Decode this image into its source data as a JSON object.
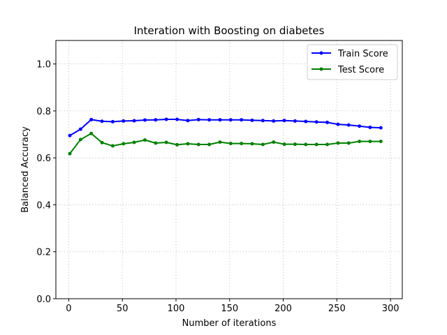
{
  "chart_data": {
    "type": "line",
    "title": "Interation with Boosting on diabetes",
    "xlabel": "Number of iterations",
    "ylabel": "Balanced Accuracy",
    "xlim": [
      -12,
      311
    ],
    "ylim": [
      0.0,
      1.1
    ],
    "xticks": [
      0,
      50,
      100,
      150,
      200,
      250,
      300
    ],
    "yticks": [
      0.0,
      0.2,
      0.4,
      0.6,
      0.8,
      1.0
    ],
    "xtick_labels": [
      "0",
      "50",
      "100",
      "150",
      "200",
      "250",
      "300"
    ],
    "ytick_labels": [
      "0.0",
      "0.2",
      "0.4",
      "0.6",
      "0.8",
      "1.0"
    ],
    "grid": true,
    "legend_position": "top-right",
    "x": [
      1,
      11,
      21,
      31,
      41,
      51,
      61,
      71,
      81,
      91,
      101,
      111,
      121,
      131,
      141,
      151,
      161,
      171,
      181,
      191,
      201,
      211,
      221,
      231,
      241,
      251,
      261,
      271,
      281,
      291
    ],
    "series": [
      {
        "name": "Train Score",
        "color": "#0000ff",
        "values": [
          0.695,
          0.722,
          0.763,
          0.756,
          0.754,
          0.757,
          0.758,
          0.761,
          0.762,
          0.764,
          0.764,
          0.759,
          0.763,
          0.762,
          0.762,
          0.762,
          0.762,
          0.76,
          0.759,
          0.757,
          0.759,
          0.757,
          0.755,
          0.753,
          0.751,
          0.743,
          0.74,
          0.735,
          0.73,
          0.728
        ]
      },
      {
        "name": "Test Score",
        "color": "#008000",
        "values": [
          0.618,
          0.678,
          0.704,
          0.665,
          0.651,
          0.66,
          0.666,
          0.676,
          0.663,
          0.666,
          0.656,
          0.66,
          0.657,
          0.657,
          0.667,
          0.661,
          0.661,
          0.66,
          0.657,
          0.667,
          0.658,
          0.658,
          0.657,
          0.657,
          0.657,
          0.663,
          0.663,
          0.67,
          0.67,
          0.67
        ]
      }
    ]
  }
}
